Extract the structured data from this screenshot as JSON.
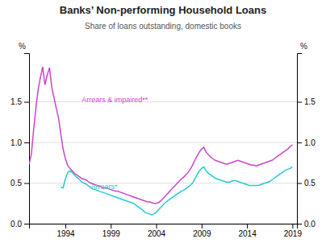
{
  "chart_data": {
    "type": "line",
    "title": "Banks’ Non-performing Household Loans",
    "subtitle": "Share of loans outstanding, domestic books",
    "ylabel": "%",
    "y2label": "%",
    "xlim": [
      1990,
      2019.5
    ],
    "xticks": [
      1994,
      1999,
      2004,
      2009,
      2014,
      2019
    ],
    "ylim": [
      0.0,
      2.1
    ],
    "yticks": [
      {
        "value": 0.0,
        "label": "0.0"
      },
      0.5,
      {
        "value": 1.0,
        "label": "1.0"
      },
      1.5
    ],
    "y2lim": [
      0.0,
      2.1
    ],
    "y2ticks": [
      {
        "value": 0.0,
        "label": "0.0"
      },
      0.5,
      {
        "value": 1.0,
        "label": "1.0"
      },
      1.5
    ],
    "grid": true,
    "x": [
      1990.0,
      1990.25,
      1990.5,
      1990.75,
      1991.0,
      1991.25,
      1991.5,
      1991.75,
      1992.0,
      1992.25,
      1992.5,
      1992.75,
      1993.0,
      1993.25,
      1993.5,
      1993.75,
      1994.0,
      1994.25,
      1994.5,
      1994.75,
      1995.0,
      1995.25,
      1995.5,
      1995.75,
      1996.0,
      1996.25,
      1996.5,
      1996.75,
      1997.0,
      1997.25,
      1997.5,
      1997.75,
      1998.0,
      1998.25,
      1998.5,
      1998.75,
      1999.0,
      1999.25,
      1999.5,
      1999.75,
      2000.0,
      2000.25,
      2000.5,
      2000.75,
      2001.0,
      2001.25,
      2001.5,
      2001.75,
      2002.0,
      2002.25,
      2002.5,
      2002.75,
      2003.0,
      2003.25,
      2003.5,
      2003.75,
      2004.0,
      2004.25,
      2004.5,
      2004.75,
      2005.0,
      2005.25,
      2005.5,
      2005.75,
      2006.0,
      2006.25,
      2006.5,
      2006.75,
      2007.0,
      2007.25,
      2007.5,
      2007.75,
      2008.0,
      2008.25,
      2008.5,
      2008.75,
      2009.0,
      2009.25,
      2009.5,
      2009.75,
      2010.0,
      2010.25,
      2010.5,
      2010.75,
      2011.0,
      2011.25,
      2011.5,
      2011.75,
      2012.0,
      2012.25,
      2012.5,
      2012.75,
      2013.0,
      2013.25,
      2013.5,
      2013.75,
      2014.0,
      2014.25,
      2014.5,
      2014.75,
      2015.0,
      2015.25,
      2015.5,
      2015.75,
      2016.0,
      2016.25,
      2016.5,
      2016.75,
      2017.0,
      2017.25,
      2017.5,
      2017.75,
      2018.0,
      2018.25,
      2018.5,
      2018.75,
      2019.0
    ],
    "series": [
      {
        "name": "Arrears & impaired**",
        "color": "#cc44cc",
        "values": [
          0.73,
          0.85,
          1.15,
          1.42,
          1.65,
          1.8,
          1.93,
          1.71,
          1.83,
          1.92,
          1.68,
          1.55,
          1.42,
          1.3,
          1.1,
          0.92,
          0.8,
          0.72,
          0.68,
          0.65,
          0.62,
          0.6,
          0.58,
          0.56,
          0.55,
          0.54,
          0.52,
          0.5,
          0.49,
          0.48,
          0.47,
          0.46,
          0.45,
          0.44,
          0.44,
          0.43,
          0.42,
          0.41,
          0.4,
          0.4,
          0.39,
          0.38,
          0.37,
          0.36,
          0.35,
          0.34,
          0.33,
          0.32,
          0.31,
          0.3,
          0.29,
          0.28,
          0.27,
          0.27,
          0.26,
          0.25,
          0.25,
          0.26,
          0.28,
          0.31,
          0.34,
          0.37,
          0.4,
          0.43,
          0.46,
          0.49,
          0.52,
          0.55,
          0.57,
          0.6,
          0.63,
          0.67,
          0.72,
          0.78,
          0.83,
          0.88,
          0.92,
          0.94,
          0.88,
          0.85,
          0.82,
          0.8,
          0.78,
          0.77,
          0.76,
          0.75,
          0.74,
          0.73,
          0.74,
          0.75,
          0.76,
          0.77,
          0.78,
          0.77,
          0.76,
          0.75,
          0.74,
          0.73,
          0.72,
          0.72,
          0.71,
          0.72,
          0.73,
          0.74,
          0.75,
          0.76,
          0.77,
          0.78,
          0.8,
          0.82,
          0.84,
          0.86,
          0.88,
          0.9,
          0.92,
          0.95,
          0.97
        ]
      },
      {
        "name": "Arrears*",
        "color": "#22cccc",
        "values": [
          null,
          null,
          null,
          null,
          null,
          null,
          null,
          null,
          null,
          null,
          null,
          null,
          null,
          null,
          0.45,
          0.44,
          0.55,
          0.63,
          0.65,
          0.63,
          0.6,
          0.57,
          0.55,
          0.52,
          0.5,
          0.49,
          0.47,
          0.45,
          0.43,
          0.42,
          0.41,
          0.4,
          0.39,
          0.38,
          0.37,
          0.36,
          0.35,
          0.34,
          0.33,
          0.32,
          0.31,
          0.3,
          0.29,
          0.28,
          0.27,
          0.26,
          0.25,
          0.23,
          0.21,
          0.19,
          0.17,
          0.14,
          0.13,
          0.12,
          0.11,
          0.12,
          0.14,
          0.17,
          0.2,
          0.23,
          0.26,
          0.28,
          0.3,
          0.32,
          0.34,
          0.36,
          0.38,
          0.4,
          0.41,
          0.43,
          0.45,
          0.47,
          0.5,
          0.55,
          0.6,
          0.65,
          0.68,
          0.7,
          0.65,
          0.62,
          0.6,
          0.58,
          0.56,
          0.55,
          0.54,
          0.53,
          0.52,
          0.51,
          0.51,
          0.52,
          0.53,
          0.53,
          0.52,
          0.51,
          0.5,
          0.49,
          0.48,
          0.47,
          0.47,
          0.47,
          0.47,
          0.47,
          0.48,
          0.49,
          0.5,
          0.51,
          0.52,
          0.54,
          0.56,
          0.58,
          0.6,
          0.62,
          0.64,
          0.66,
          0.67,
          0.68,
          0.7
        ]
      }
    ],
    "annotations": [
      {
        "text": "Arrears & impaired**",
        "x": 1995.8,
        "y": 1.5,
        "color": "#cc44cc"
      },
      {
        "text": "Arrears*",
        "x": 1996.8,
        "y": 0.43,
        "color": "#22cccc"
      }
    ]
  }
}
